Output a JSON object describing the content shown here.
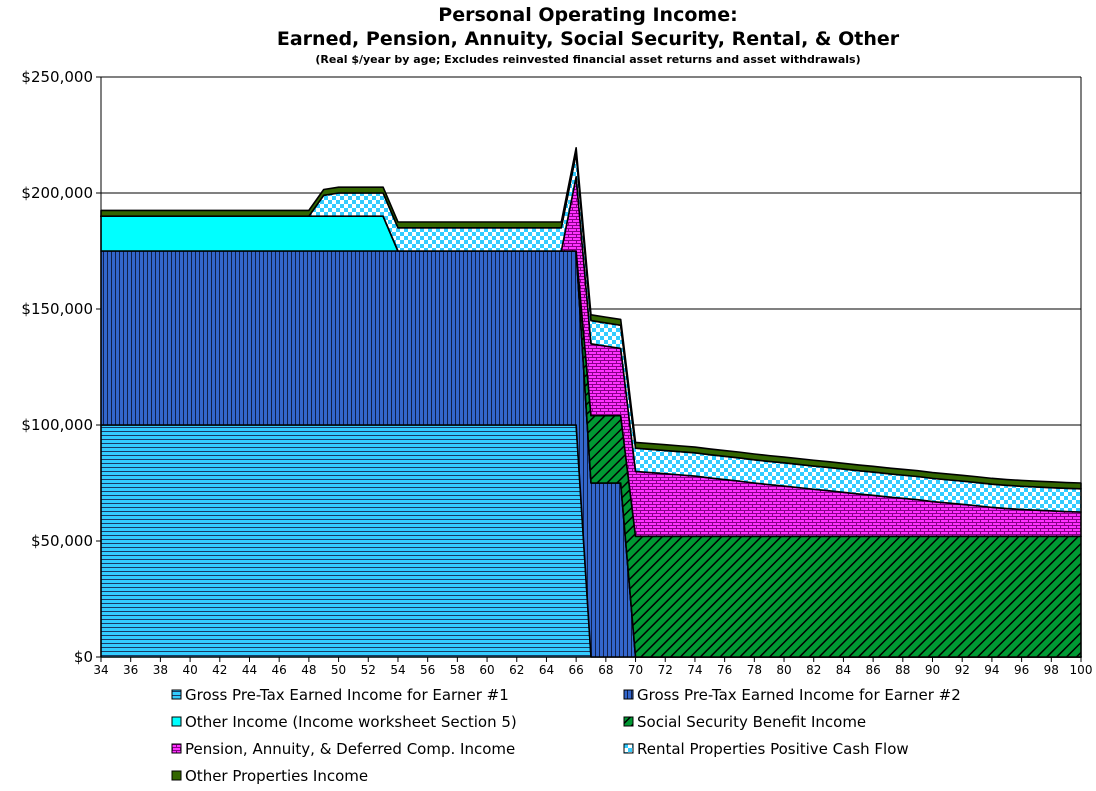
{
  "chart_data": {
    "type": "area",
    "stacked": true,
    "title": "Personal Operating Income:",
    "title2": "Earned, Pension, Annuity, Social Security, Rental, & Other",
    "subtitle": "(Real $/year by age; Excludes reinvested financial asset returns and asset withdrawals)",
    "xlabel": "",
    "ylabel": "",
    "ylim": [
      0,
      250000
    ],
    "xlim": [
      34,
      100
    ],
    "yticks": [
      0,
      50000,
      100000,
      150000,
      200000,
      250000
    ],
    "ytick_labels": [
      "$0",
      "$50,000",
      "$100,000",
      "$150,000",
      "$200,000",
      "$250,000"
    ],
    "xticks": [
      34,
      36,
      38,
      40,
      42,
      44,
      46,
      48,
      50,
      52,
      54,
      56,
      58,
      60,
      62,
      64,
      66,
      68,
      70,
      72,
      74,
      76,
      78,
      80,
      82,
      84,
      86,
      88,
      90,
      92,
      94,
      96,
      98,
      100
    ],
    "xtick_labels": [
      "34",
      "36",
      "38",
      "40",
      "42",
      "44",
      "46",
      "48",
      "50",
      "52",
      "54",
      "56",
      "58",
      "60",
      "62",
      "64",
      "66",
      "68",
      "70",
      "72",
      "74",
      "76",
      "78",
      "80",
      "82",
      "84",
      "86",
      "88",
      "90",
      "92",
      "94",
      "96",
      "98",
      "100"
    ],
    "grid": "horizontal",
    "legend_position": "bottom",
    "x": [
      34,
      35,
      36,
      37,
      38,
      39,
      40,
      41,
      42,
      43,
      44,
      45,
      46,
      47,
      48,
      49,
      50,
      51,
      52,
      53,
      54,
      55,
      56,
      57,
      58,
      59,
      60,
      61,
      62,
      63,
      64,
      65,
      66,
      67,
      68,
      69,
      70,
      71,
      72,
      73,
      74,
      75,
      76,
      77,
      78,
      79,
      80,
      81,
      82,
      83,
      84,
      85,
      86,
      87,
      88,
      89,
      90,
      91,
      92,
      93,
      94,
      95,
      96,
      97,
      98,
      99,
      100
    ],
    "series": [
      {
        "name": "Gross Pre-Tax Earned Income for Earner #1",
        "color": "#33CCFF",
        "pattern": "hlines",
        "values": [
          100000,
          100000,
          100000,
          100000,
          100000,
          100000,
          100000,
          100000,
          100000,
          100000,
          100000,
          100000,
          100000,
          100000,
          100000,
          100000,
          100000,
          100000,
          100000,
          100000,
          100000,
          100000,
          100000,
          100000,
          100000,
          100000,
          100000,
          100000,
          100000,
          100000,
          100000,
          100000,
          100000,
          0,
          0,
          0,
          0,
          0,
          0,
          0,
          0,
          0,
          0,
          0,
          0,
          0,
          0,
          0,
          0,
          0,
          0,
          0,
          0,
          0,
          0,
          0,
          0,
          0,
          0,
          0,
          0,
          0,
          0,
          0,
          0,
          0,
          0
        ]
      },
      {
        "name": "Gross Pre-Tax Earned Income for Earner #2",
        "color": "#3366CC",
        "pattern": "vlines",
        "values": [
          75000,
          75000,
          75000,
          75000,
          75000,
          75000,
          75000,
          75000,
          75000,
          75000,
          75000,
          75000,
          75000,
          75000,
          75000,
          75000,
          75000,
          75000,
          75000,
          75000,
          75000,
          75000,
          75000,
          75000,
          75000,
          75000,
          75000,
          75000,
          75000,
          75000,
          75000,
          75000,
          75000,
          75000,
          75000,
          75000,
          0,
          0,
          0,
          0,
          0,
          0,
          0,
          0,
          0,
          0,
          0,
          0,
          0,
          0,
          0,
          0,
          0,
          0,
          0,
          0,
          0,
          0,
          0,
          0,
          0,
          0,
          0,
          0,
          0,
          0,
          0
        ]
      },
      {
        "name": "Other Income (Income worksheet Section 5)",
        "color": "#00FFFF",
        "pattern": "solid",
        "values": [
          15000,
          15000,
          15000,
          15000,
          15000,
          15000,
          15000,
          15000,
          15000,
          15000,
          15000,
          15000,
          15000,
          15000,
          15000,
          15000,
          15000,
          15000,
          15000,
          15000,
          0,
          0,
          0,
          0,
          0,
          0,
          0,
          0,
          0,
          0,
          0,
          0,
          0,
          0,
          0,
          0,
          0,
          0,
          0,
          0,
          0,
          0,
          0,
          0,
          0,
          0,
          0,
          0,
          0,
          0,
          0,
          0,
          0,
          0,
          0,
          0,
          0,
          0,
          0,
          0,
          0,
          0,
          0,
          0,
          0,
          0,
          0
        ]
      },
      {
        "name": "Social Security Benefit Income",
        "color": "#009933",
        "pattern": "diag",
        "values": [
          0,
          0,
          0,
          0,
          0,
          0,
          0,
          0,
          0,
          0,
          0,
          0,
          0,
          0,
          0,
          0,
          0,
          0,
          0,
          0,
          0,
          0,
          0,
          0,
          0,
          0,
          0,
          0,
          0,
          0,
          0,
          0,
          0,
          29000,
          29000,
          29000,
          52000,
          52000,
          52000,
          52000,
          52000,
          52000,
          52000,
          52000,
          52000,
          52000,
          52000,
          52000,
          52000,
          52000,
          52000,
          52000,
          52000,
          52000,
          52000,
          52000,
          52000,
          52000,
          52000,
          52000,
          52000,
          52000,
          52000,
          52000,
          52000,
          52000,
          52000
        ]
      },
      {
        "name": "Pension, Annuity, & Deferred Comp. Income",
        "color": "#FF33FF",
        "pattern": "brick",
        "values": [
          0,
          0,
          0,
          0,
          0,
          0,
          0,
          0,
          0,
          0,
          0,
          0,
          0,
          0,
          0,
          0,
          0,
          0,
          0,
          0,
          0,
          0,
          0,
          0,
          0,
          0,
          0,
          0,
          0,
          0,
          0,
          0,
          32000,
          31000,
          30000,
          29000,
          28000,
          27500,
          27000,
          26500,
          26000,
          25200,
          24500,
          23800,
          23000,
          22300,
          21700,
          21000,
          20300,
          19700,
          19000,
          18300,
          17700,
          17000,
          16400,
          15800,
          15000,
          14400,
          13800,
          13200,
          12500,
          12000,
          11600,
          11300,
          11000,
          10700,
          10500
        ]
      },
      {
        "name": "Rental Properties Positive Cash Flow",
        "color": "#99CCFF",
        "pattern": "check",
        "values": [
          0,
          0,
          0,
          0,
          0,
          0,
          0,
          0,
          0,
          0,
          0,
          0,
          0,
          0,
          0,
          9000,
          10000,
          10000,
          10000,
          10000,
          10000,
          10000,
          10000,
          10000,
          10000,
          10000,
          10000,
          10000,
          10000,
          10000,
          10000,
          10000,
          10000,
          10000,
          10000,
          10000,
          10000,
          10000,
          10000,
          10000,
          10000,
          10000,
          10000,
          10000,
          10000,
          10000,
          10000,
          10000,
          10000,
          10000,
          10000,
          10000,
          10000,
          10000,
          10000,
          10000,
          10000,
          10000,
          10000,
          10000,
          10000,
          10000,
          10000,
          10000,
          10000,
          10000,
          10000
        ]
      },
      {
        "name": "Other Properties Income",
        "color": "#336600",
        "pattern": "solid",
        "values": [
          2500,
          2500,
          2500,
          2500,
          2500,
          2500,
          2500,
          2500,
          2500,
          2500,
          2500,
          2500,
          2500,
          2500,
          2500,
          2500,
          2500,
          2500,
          2500,
          2500,
          2500,
          2500,
          2500,
          2500,
          2500,
          2500,
          2500,
          2500,
          2500,
          2500,
          2500,
          2500,
          2500,
          2500,
          2500,
          2500,
          2500,
          2500,
          2500,
          2500,
          2500,
          2500,
          2500,
          2500,
          2500,
          2500,
          2500,
          2500,
          2500,
          2500,
          2500,
          2500,
          2500,
          2500,
          2500,
          2500,
          2500,
          2500,
          2500,
          2500,
          2500,
          2500,
          2500,
          2500,
          2500,
          2500,
          2500
        ]
      }
    ]
  }
}
